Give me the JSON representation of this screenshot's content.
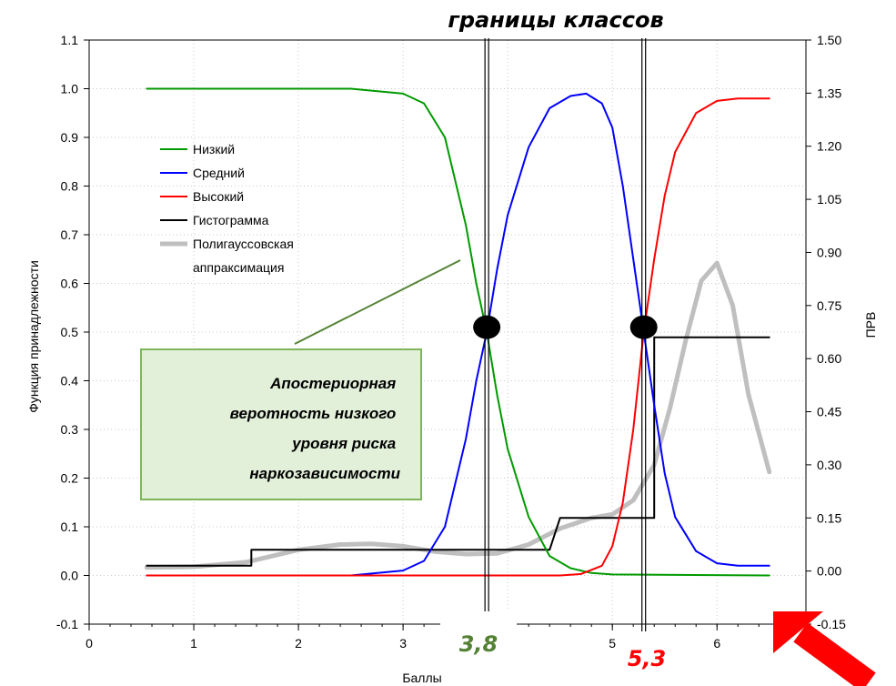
{
  "header": {
    "title": "границы классов"
  },
  "callout": {
    "lines": [
      "Апостериорная",
      "веротность низкого",
      "уровня риска",
      "наркозависимости"
    ]
  },
  "boundary_labels": {
    "left": "3,8",
    "right": "5,3"
  },
  "colors": {
    "low": "#009a00",
    "mid": "#0000ff",
    "high": "#ff0000",
    "hist": "#000000",
    "poly": "#bfbfbf",
    "callout_fill": "#e2efd9",
    "callout_border": "#7fb55a",
    "left_label": "#548235",
    "right_label": "#ff0000",
    "arrow": "#ff0000"
  },
  "chart_data": {
    "type": "line",
    "xlabel": "Баллы",
    "ylabel": "Функция принадлежности",
    "y2label": "ПРВ",
    "xlim": [
      0,
      6.85
    ],
    "ylim": [
      -0.1,
      1.1
    ],
    "y2lim": [
      -0.15,
      1.5
    ],
    "x_ticks": [
      "0",
      "1",
      "2",
      "3",
      "5",
      "6"
    ],
    "y_ticks": [
      "1.1",
      "1.0",
      "0.9",
      "0.8",
      "0.7",
      "0.6",
      "0.5",
      "0.4",
      "0.3",
      "0.2",
      "0.1",
      "0.0",
      "-0.1"
    ],
    "y2_ticks": [
      "1.50",
      "1.35",
      "1.20",
      "1.05",
      "0.90",
      "0.75",
      "0.60",
      "0.45",
      "0.30",
      "0.15",
      "0.00",
      "-0.15"
    ],
    "grid": true,
    "legend_position": "upper-left",
    "boundaries": [
      3.8,
      5.3
    ],
    "markers": [
      {
        "x": 3.8,
        "y": 0.51
      },
      {
        "x": 5.3,
        "y": 0.51
      }
    ],
    "series": [
      {
        "name": "Низкий",
        "axis": "left",
        "x": [
          0.55,
          1.0,
          1.5,
          2.0,
          2.5,
          3.0,
          3.2,
          3.4,
          3.6,
          3.7,
          3.8,
          3.9,
          4.0,
          4.2,
          4.4,
          4.6,
          4.8,
          5.0,
          6.5
        ],
        "y": [
          1.0,
          1.0,
          1.0,
          1.0,
          1.0,
          0.99,
          0.97,
          0.9,
          0.72,
          0.6,
          0.5,
          0.37,
          0.26,
          0.12,
          0.04,
          0.015,
          0.005,
          0.002,
          0.0
        ]
      },
      {
        "name": "Средний",
        "axis": "left",
        "x": [
          0.55,
          2.5,
          3.0,
          3.2,
          3.4,
          3.6,
          3.7,
          3.8,
          3.9,
          4.0,
          4.2,
          4.4,
          4.6,
          4.75,
          4.9,
          5.0,
          5.1,
          5.2,
          5.3,
          5.4,
          5.5,
          5.6,
          5.8,
          6.0,
          6.2,
          6.5
        ],
        "y": [
          0.0,
          0.0,
          0.01,
          0.03,
          0.1,
          0.28,
          0.4,
          0.5,
          0.63,
          0.74,
          0.88,
          0.96,
          0.985,
          0.99,
          0.97,
          0.92,
          0.8,
          0.65,
          0.5,
          0.35,
          0.21,
          0.12,
          0.05,
          0.025,
          0.02,
          0.02
        ]
      },
      {
        "name": "Высокий",
        "axis": "left",
        "x": [
          0.55,
          4.5,
          4.7,
          4.9,
          5.0,
          5.1,
          5.2,
          5.3,
          5.4,
          5.5,
          5.6,
          5.8,
          6.0,
          6.2,
          6.5
        ],
        "y": [
          0.0,
          0.0,
          0.003,
          0.02,
          0.06,
          0.15,
          0.3,
          0.5,
          0.65,
          0.78,
          0.87,
          0.95,
          0.975,
          0.98,
          0.98
        ]
      },
      {
        "name": "Гистограмма",
        "axis": "right",
        "x": [
          0.55,
          1.55,
          1.55,
          3.7,
          3.7,
          4.4,
          4.4,
          4.5,
          4.5,
          5.4,
          5.4,
          6.5
        ],
        "y": [
          0.015,
          0.015,
          0.06,
          0.06,
          0.06,
          0.06,
          0.06,
          0.15,
          0.15,
          0.15,
          0.66,
          0.66
        ]
      },
      {
        "name": "Полигауссовская аппраксимация",
        "axis": "right",
        "x": [
          0.55,
          1.0,
          1.5,
          2.0,
          2.4,
          2.7,
          3.0,
          3.3,
          3.6,
          3.9,
          4.2,
          4.5,
          4.8,
          5.0,
          5.2,
          5.4,
          5.55,
          5.7,
          5.85,
          6.0,
          6.15,
          6.3,
          6.5
        ],
        "y": [
          0.01,
          0.012,
          0.025,
          0.06,
          0.075,
          0.077,
          0.07,
          0.055,
          0.048,
          0.05,
          0.075,
          0.12,
          0.15,
          0.16,
          0.2,
          0.3,
          0.46,
          0.65,
          0.82,
          0.87,
          0.75,
          0.5,
          0.28
        ]
      }
    ]
  }
}
